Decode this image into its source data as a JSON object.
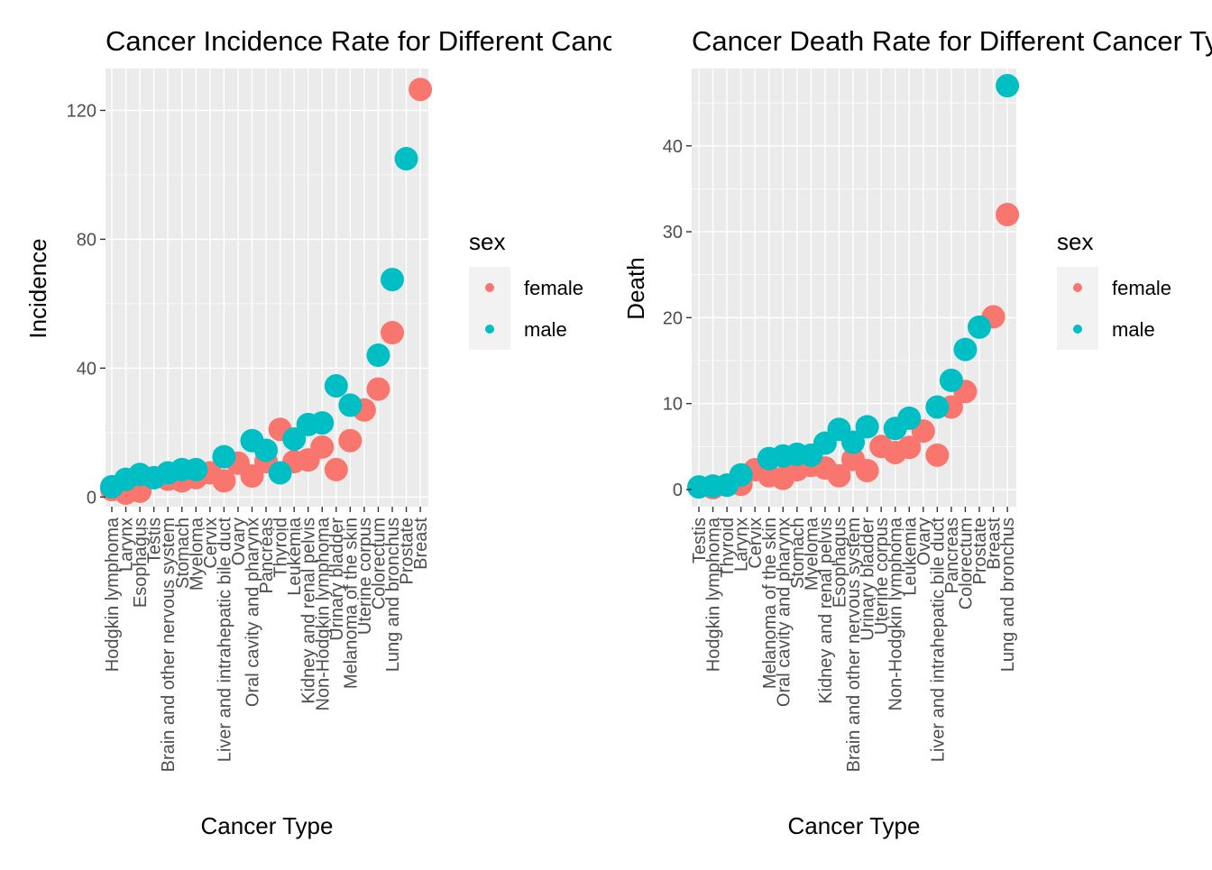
{
  "chart_data": [
    {
      "type": "scatter",
      "title": "Cancer Incidence Rate for Different Cancer Types",
      "xlabel": "Cancer Type",
      "ylabel": "Incidence",
      "ylim": [
        -3,
        133
      ],
      "yticks": [
        0,
        40,
        80,
        120
      ],
      "categories": [
        "Hodgkin lymphoma",
        "Larynx",
        "Esophagus",
        "Testis",
        "Brain and other nervous system",
        "Stomach",
        "Myeloma",
        "Cervix",
        "Liver and intrahepatic bile duct",
        "Ovary",
        "Oral cavity and pharynx",
        "Pancreas",
        "Thyroid",
        "Leukemia",
        "Kidney and renal pelvis",
        "Non-Hodgkin lymphoma",
        "Urinary bladder",
        "Melanoma of the skin",
        "Uterine corpus",
        "Colorectum",
        "Lung and bronchus",
        "Prostate",
        "Breast"
      ],
      "legend_title": "sex",
      "series": [
        {
          "name": "female",
          "color": "#F8766D",
          "values": [
            2.3,
            1.2,
            1.8,
            null,
            5.5,
            5.0,
            6.0,
            7.5,
            5.0,
            10.5,
            6.5,
            11.0,
            21.0,
            11.0,
            11.5,
            15.5,
            8.5,
            17.5,
            27.0,
            33.5,
            51.0,
            null,
            126.5
          ]
        },
        {
          "name": "male",
          "color": "#00BFC4",
          "values": [
            3.2,
            5.5,
            7.0,
            6.0,
            7.5,
            8.5,
            8.5,
            null,
            12.5,
            null,
            17.5,
            14.5,
            7.5,
            18.0,
            22.5,
            23.0,
            34.5,
            28.5,
            null,
            44.0,
            67.5,
            105.0,
            null
          ]
        }
      ]
    },
    {
      "type": "scatter",
      "title": "Cancer Death Rate for Different Cancer Types",
      "xlabel": "Cancer Type",
      "ylabel": "Death",
      "ylim": [
        -2,
        49
      ],
      "yticks": [
        0,
        10,
        20,
        30,
        40
      ],
      "categories": [
        "Testis",
        "Hodgkin lymphoma",
        "Thyroid",
        "Larynx",
        "Cervix",
        "Melanoma of the skin",
        "Oral cavity and pharynx",
        "Stomach",
        "Myeloma",
        "Kidney and renal pelvis",
        "Esophagus",
        "Brain and other nervous system",
        "Urinary bladder",
        "Uterine corpus",
        "Non-Hodgkin lymphoma",
        "Leukemia",
        "Ovary",
        "Liver and intrahepatic bile duct",
        "Pancreas",
        "Colorectum",
        "Prostate",
        "Breast",
        "Lung and bronchus"
      ],
      "legend_title": "sex",
      "series": [
        {
          "name": "female",
          "color": "#F8766D",
          "values": [
            null,
            0.2,
            0.5,
            0.6,
            2.3,
            1.6,
            1.3,
            2.3,
            2.8,
            2.5,
            1.6,
            3.5,
            2.2,
            5.0,
            4.3,
            4.9,
            6.8,
            4.0,
            9.6,
            11.4,
            null,
            20.1,
            32.0
          ]
        },
        {
          "name": "male",
          "color": "#00BFC4",
          "values": [
            0.3,
            0.4,
            0.5,
            1.7,
            null,
            3.6,
            3.9,
            4.1,
            4.0,
            5.4,
            7.0,
            5.5,
            7.3,
            null,
            7.1,
            8.3,
            null,
            9.6,
            12.7,
            16.3,
            18.9,
            null,
            47.0
          ]
        }
      ]
    }
  ]
}
